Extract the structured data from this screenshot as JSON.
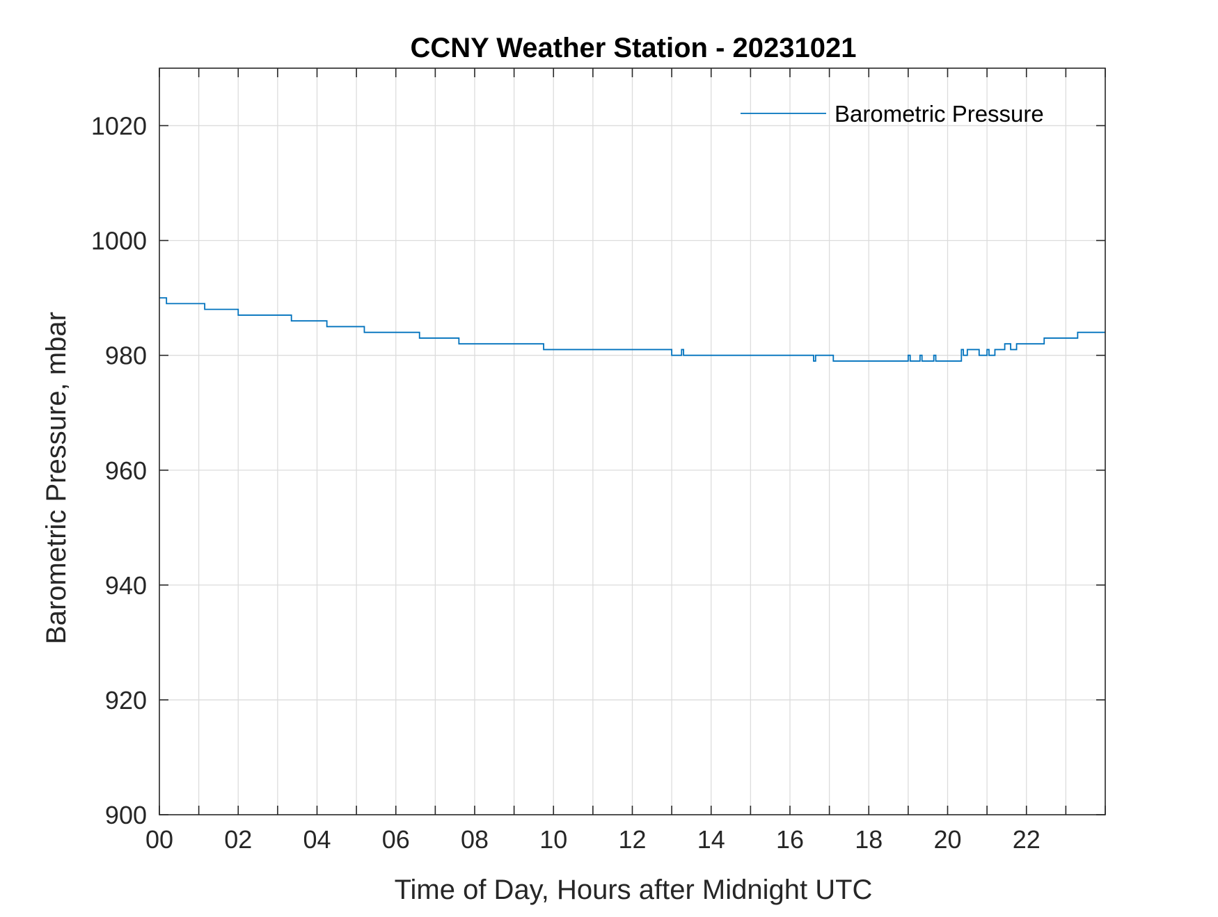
{
  "chart_data": {
    "type": "line",
    "title": "CCNY Weather Station - 20231021",
    "xlabel": "Time of Day, Hours after Midnight UTC",
    "ylabel": "Barometric Pressure, mbar",
    "xlim": [
      0,
      24
    ],
    "ylim": [
      900,
      1030
    ],
    "grid": true,
    "legend_position": "top-right",
    "x_ticks": [
      0,
      2,
      4,
      6,
      8,
      10,
      12,
      14,
      16,
      18,
      20,
      22
    ],
    "x_tick_labels": [
      "00",
      "02",
      "04",
      "06",
      "08",
      "10",
      "12",
      "14",
      "16",
      "18",
      "20",
      "22"
    ],
    "y_ticks": [
      900,
      920,
      940,
      960,
      980,
      1000,
      1020
    ],
    "y_tick_labels": [
      "900",
      "920",
      "940",
      "960",
      "980",
      "1000",
      "1020"
    ],
    "series": [
      {
        "name": "Barometric Pressure",
        "color": "#0072BD",
        "step": true,
        "x": [
          0,
          0.18,
          1.15,
          2.0,
          3.35,
          4.25,
          5.2,
          6.6,
          7.6,
          9.75,
          13.0,
          13.25,
          13.3,
          16.6,
          16.65,
          17.1,
          19.0,
          19.05,
          19.1,
          19.3,
          19.35,
          19.65,
          19.7,
          20.35,
          20.4,
          20.5,
          20.55,
          20.8,
          20.85,
          21.0,
          21.05,
          21.15,
          21.2,
          21.45,
          21.6,
          21.75,
          22.45,
          23.3,
          24.0
        ],
        "y": [
          990,
          989,
          988,
          987,
          986,
          985,
          984,
          983,
          982,
          981,
          980,
          981,
          980,
          979,
          980,
          979,
          980,
          979,
          979,
          980,
          979,
          980,
          979,
          981,
          980,
          981,
          981,
          980,
          980,
          981,
          980,
          980,
          981,
          982,
          981,
          982,
          983,
          984,
          984
        ]
      }
    ]
  }
}
